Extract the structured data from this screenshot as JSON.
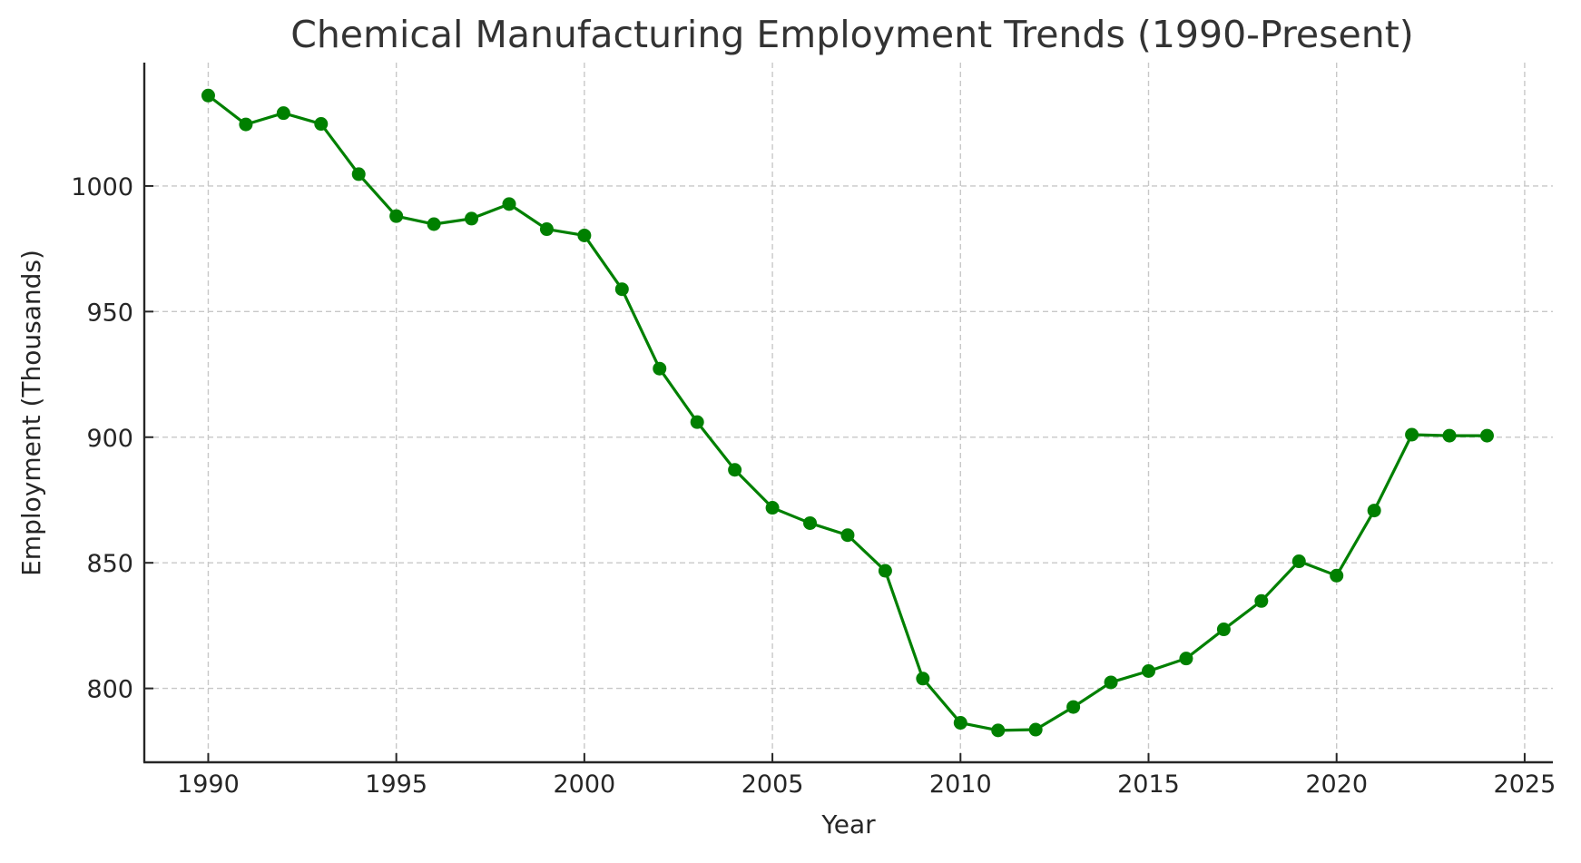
{
  "chart_data": {
    "type": "line",
    "title": "Chemical Manufacturing Employment Trends (1990-Present)",
    "xlabel": "Year",
    "ylabel": "Employment (Thousands)",
    "xlim": [
      1988.3,
      2025.75
    ],
    "ylim": [
      770.6,
      1049.1
    ],
    "xticks": [
      1990,
      1995,
      2000,
      2005,
      2010,
      2015,
      2020,
      2025
    ],
    "yticks": [
      800,
      850,
      900,
      950,
      1000
    ],
    "grid": true,
    "legend": null,
    "series": [
      {
        "name": "Employment",
        "color": "#008000",
        "marker": "circle",
        "x": [
          1990,
          1991,
          1992,
          1993,
          1994,
          1995,
          1996,
          1997,
          1998,
          1999,
          2000,
          2001,
          2002,
          2003,
          2004,
          2005,
          2006,
          2007,
          2008,
          2009,
          2010,
          2011,
          2012,
          2013,
          2014,
          2015,
          2016,
          2017,
          2018,
          2019,
          2020,
          2021,
          2022,
          2023,
          2024
        ],
        "values": [
          1036,
          1024.5,
          1029,
          1024.7,
          1004.7,
          988,
          984.8,
          987,
          992.8,
          982.8,
          980.3,
          958.9,
          927.3,
          906,
          887,
          871.9,
          865.8,
          861,
          846.8,
          803.9,
          786.3,
          783.3,
          783.6,
          792.6,
          802.4,
          806.9,
          811.9,
          823.5,
          834.8,
          850.6,
          844.9,
          870.8,
          901,
          900.6,
          900.6
        ]
      }
    ]
  },
  "colors": {
    "line": "#008000",
    "grid": "#c8c8c8",
    "axis": "#262626",
    "title": "#333333"
  }
}
